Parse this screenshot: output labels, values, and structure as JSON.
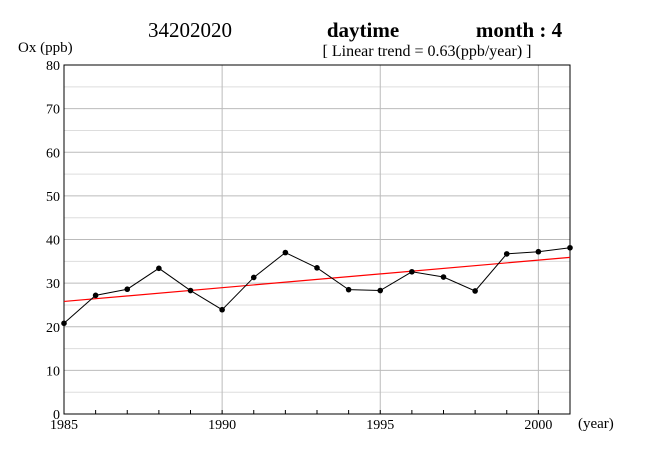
{
  "chart_data": {
    "type": "line",
    "title_parts": {
      "station": "34202020",
      "period": "daytime",
      "month": "month : 4"
    },
    "subtitle": "[ Linear trend = 0.63(ppb/year) ]",
    "ylabel": "Ox (ppb)",
    "xlabel": "(year)",
    "xlim": [
      1985,
      2001
    ],
    "ylim": [
      0,
      80
    ],
    "x_ticks": [
      1985,
      1990,
      1995,
      2000
    ],
    "y_ticks": [
      0,
      10,
      20,
      30,
      40,
      50,
      60,
      70,
      80
    ],
    "grid": true,
    "series": [
      {
        "color": "#000000",
        "marker": "circle",
        "x": [
          1985,
          1986,
          1987,
          1988,
          1989,
          1990,
          1991,
          1992,
          1993,
          1994,
          1995,
          1996,
          1997,
          1998,
          1999,
          2000,
          2001
        ],
        "values": [
          20.8,
          27.2,
          28.6,
          33.4,
          28.3,
          23.9,
          31.3,
          37.0,
          33.5,
          28.5,
          28.3,
          32.6,
          31.4,
          28.2,
          36.7,
          37.2,
          38.1
        ]
      }
    ],
    "trend": {
      "color": "#ff0000",
      "x": [
        1985,
        2001
      ],
      "values": [
        25.8,
        35.9
      ]
    }
  }
}
